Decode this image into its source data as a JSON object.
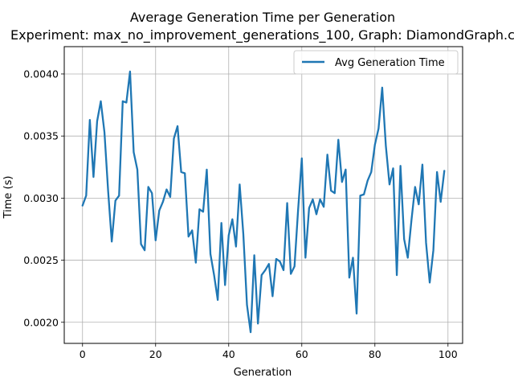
{
  "chart_data": {
    "type": "line",
    "title": "Average Generation Time per Generation",
    "subtitle": "Experiment: max_no_improvement_generations_100, Graph: DiamondGraph.c",
    "xlabel": "Generation",
    "ylabel": "Time (s)",
    "xlim": [
      -5,
      104
    ],
    "ylim": [
      0.00183,
      0.00422
    ],
    "xticks": [
      0,
      20,
      40,
      60,
      80,
      100
    ],
    "xtick_labels": [
      "0",
      "20",
      "40",
      "60",
      "80",
      "100"
    ],
    "yticks": [
      0.002,
      0.0025,
      0.003,
      0.0035,
      0.004
    ],
    "ytick_labels": [
      "0.0020",
      "0.0025",
      "0.0030",
      "0.0035",
      "0.0040"
    ],
    "grid": true,
    "legend_position": "upper right",
    "series": [
      {
        "name": "Avg Generation Time",
        "color": "#1f77b4",
        "x": [
          0,
          1,
          2,
          3,
          4,
          5,
          6,
          7,
          8,
          9,
          10,
          11,
          12,
          13,
          14,
          15,
          16,
          17,
          18,
          19,
          20,
          21,
          22,
          23,
          24,
          25,
          26,
          27,
          28,
          29,
          30,
          31,
          32,
          33,
          34,
          35,
          36,
          37,
          38,
          39,
          40,
          41,
          42,
          43,
          44,
          45,
          46,
          47,
          48,
          49,
          50,
          51,
          52,
          53,
          54,
          55,
          56,
          57,
          58,
          59,
          60,
          61,
          62,
          63,
          64,
          65,
          66,
          67,
          68,
          69,
          70,
          71,
          72,
          73,
          74,
          75,
          76,
          77,
          78,
          79,
          80,
          81,
          82,
          83,
          84,
          85,
          86,
          87,
          88,
          89,
          90,
          91,
          92,
          93,
          94,
          95,
          96,
          97,
          98,
          99
        ],
        "values": [
          0.00294,
          0.00302,
          0.00363,
          0.00317,
          0.00362,
          0.00378,
          0.00353,
          0.00306,
          0.00265,
          0.00298,
          0.00302,
          0.00378,
          0.00377,
          0.00402,
          0.00337,
          0.00323,
          0.00263,
          0.00258,
          0.00309,
          0.00304,
          0.00266,
          0.0029,
          0.00297,
          0.00307,
          0.00301,
          0.00348,
          0.00358,
          0.00321,
          0.0032,
          0.00269,
          0.00274,
          0.00248,
          0.00291,
          0.00289,
          0.00323,
          0.00255,
          0.00238,
          0.00218,
          0.0028,
          0.0023,
          0.0027,
          0.00283,
          0.00261,
          0.00311,
          0.00271,
          0.00214,
          0.00192,
          0.00254,
          0.00199,
          0.00238,
          0.00242,
          0.00247,
          0.00221,
          0.00251,
          0.00249,
          0.00242,
          0.00296,
          0.00239,
          0.00245,
          0.00291,
          0.00332,
          0.00252,
          0.00292,
          0.00299,
          0.00287,
          0.00299,
          0.00293,
          0.00335,
          0.00306,
          0.00304,
          0.00347,
          0.00313,
          0.00323,
          0.00236,
          0.00252,
          0.00207,
          0.00302,
          0.00303,
          0.00314,
          0.00321,
          0.00343,
          0.00356,
          0.00389,
          0.00342,
          0.00311,
          0.00324,
          0.00238,
          0.00326,
          0.00267,
          0.00252,
          0.00282,
          0.00309,
          0.00295,
          0.00327,
          0.00264,
          0.00232,
          0.00258,
          0.00321,
          0.00297,
          0.00322
        ]
      }
    ]
  }
}
